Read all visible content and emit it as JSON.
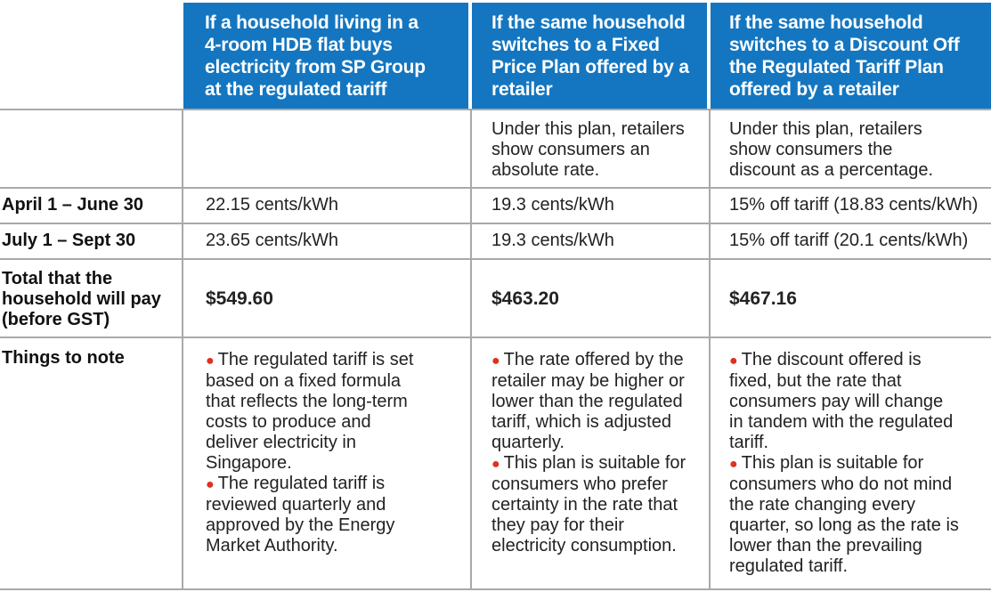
{
  "header": {
    "col1": "If a household living in a 4-room HDB flat buys electricity from SP Group at the regulated tariff",
    "col2": "If the same household switches to a Fixed Price Plan offered by a retailer",
    "col3": "If the same household switches to a Discount Off the Regulated Tariff Plan offered by a retailer"
  },
  "description": {
    "col1": "",
    "col2": "Under this plan, retailers show consumers an absolute rate.",
    "col3": "Under this plan, retailers show consumers the discount as a percentage."
  },
  "rows": {
    "april": {
      "label": "April 1 – June 30",
      "col1": "22.15 cents/kWh",
      "col2": "19.3 cents/kWh",
      "col3": "15% off tariff (18.83 cents/kWh)"
    },
    "july": {
      "label": "July 1 – Sept 30",
      "col1": "23.65 cents/kWh",
      "col2": "19.3 cents/kWh",
      "col3": "15% off tariff (20.1 cents/kWh)"
    },
    "total": {
      "label": "Total that the household will pay (before GST)",
      "col1": "$549.60",
      "col2": "$463.20",
      "col3": "$467.16"
    },
    "notes": {
      "label": "Things to note",
      "col1": [
        "The regulated tariff is set based on a fixed formula that reflects the long-term costs to produce and deliver electricity in Singapore.",
        "The regulated tariff is reviewed quarterly and approved by the Energy Market Authority."
      ],
      "col2": [
        "The rate offered by the retailer may be higher or lower than the regulated tariff, which is adjusted quarterly.",
        "This plan is suitable for consumers who prefer certainty in the rate that they pay for their electricity consumption."
      ],
      "col3": [
        "The discount offered is fixed, but the rate that consumers pay will change in tandem with the regulated tariff.",
        "This plan is suitable for consumers who do not mind the rate changing every quarter, so long as the rate is lower than the prevailing regulated tariff."
      ]
    }
  },
  "colors": {
    "header_bg": "#1476c0",
    "bullet": "#e0301e",
    "rule": "#a9a9a9"
  }
}
